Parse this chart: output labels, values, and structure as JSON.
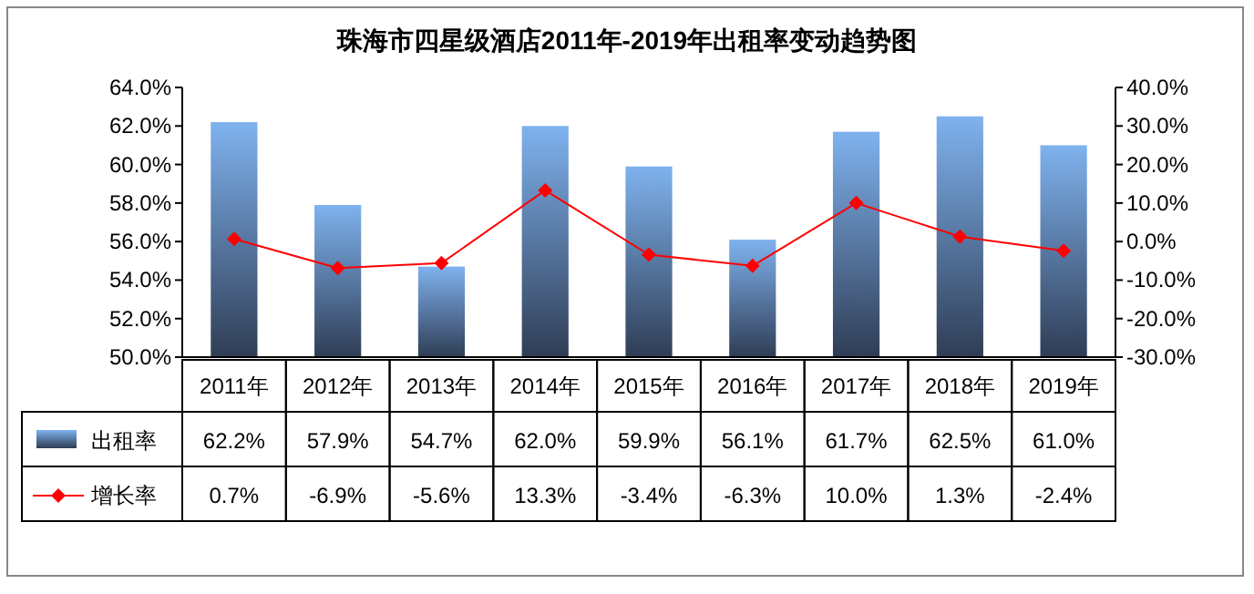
{
  "chart_data": {
    "type": "bar",
    "title": "珠海市四星级酒店2011年-2019年出租率变动趋势图",
    "categories": [
      "2011年",
      "2012年",
      "2013年",
      "2014年",
      "2015年",
      "2016年",
      "2017年",
      "2018年",
      "2019年"
    ],
    "series": [
      {
        "name": "出租率",
        "color": "#7fb2ee",
        "values": [
          62.2,
          57.9,
          54.7,
          62.0,
          59.9,
          56.1,
          61.7,
          62.5,
          61.0
        ],
        "value_labels": [
          "62.2%",
          "57.9%",
          "54.7%",
          "62.0%",
          "59.9%",
          "56.1%",
          "61.7%",
          "62.5%",
          "61.0%"
        ]
      },
      {
        "name": "增长率",
        "type": "line",
        "axis": "y2",
        "color": "#ff0000",
        "marker": "diamond",
        "values": [
          0.7,
          -6.9,
          -5.6,
          13.3,
          -3.4,
          -6.3,
          10.0,
          1.3,
          -2.4
        ],
        "value_labels": [
          "0.7%",
          "-6.9%",
          "-5.6%",
          "13.3%",
          "-3.4%",
          "-6.3%",
          "10.0%",
          "1.3%",
          "-2.4%"
        ]
      }
    ],
    "ylim": [
      50,
      64
    ],
    "yticks": [
      {
        "value": 50,
        "label": "50.0%"
      },
      {
        "value": 52,
        "label": "52.0%"
      },
      {
        "value": 54,
        "label": "54.0%"
      },
      {
        "value": 56,
        "label": "56.0%"
      },
      {
        "value": 58,
        "label": "58.0%"
      },
      {
        "value": 60,
        "label": "60.0%"
      },
      {
        "value": 62,
        "label": "62.0%"
      },
      {
        "value": 64,
        "label": "64.0%"
      }
    ],
    "y2lim": [
      -30,
      40
    ],
    "y2ticks": [
      {
        "value": -30,
        "label": "-30.0%"
      },
      {
        "value": -20,
        "label": "-20.0%"
      },
      {
        "value": -10,
        "label": "-10.0%"
      },
      {
        "value": 0,
        "label": "0.0%"
      },
      {
        "value": 10,
        "label": "10.0%"
      },
      {
        "value": 20,
        "label": "20.0%"
      },
      {
        "value": 30,
        "label": "30.0%"
      },
      {
        "value": 40,
        "label": "40.0%"
      }
    ],
    "legend": "bottom"
  }
}
